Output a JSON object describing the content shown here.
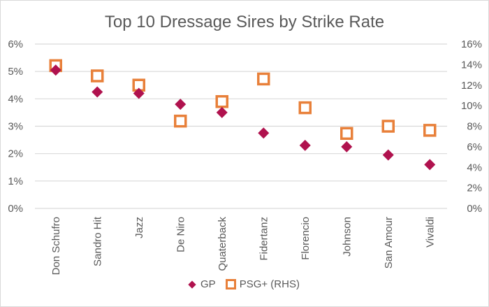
{
  "chart_data": {
    "type": "scatter",
    "title": "Top 10 Dressage Sires by Strike Rate",
    "categories": [
      "Don Schufro",
      "Sandro Hit",
      "Jazz",
      "De Niro",
      "Quaterback",
      "Fidertanz",
      "Florencio",
      "Johnson",
      "San Amour",
      "Vivaldi"
    ],
    "series": [
      {
        "name": "GP",
        "axis": "left",
        "marker": "diamond",
        "color": "#b0124e",
        "values": [
          5.05,
          4.25,
          4.2,
          3.8,
          3.5,
          2.75,
          2.3,
          2.25,
          1.95,
          1.6
        ]
      },
      {
        "name": "PSG+ (RHS)",
        "axis": "right",
        "marker": "hollow-square",
        "color": "#e8803a",
        "values": [
          13.9,
          12.9,
          12.0,
          8.5,
          10.4,
          12.6,
          9.8,
          7.3,
          8.0,
          7.6
        ]
      }
    ],
    "y_left": {
      "ylim": [
        0,
        6
      ],
      "ticks": [
        "0%",
        "1%",
        "2%",
        "3%",
        "4%",
        "5%",
        "6%"
      ]
    },
    "y_right": {
      "ylim": [
        0,
        16
      ],
      "ticks": [
        "0%",
        "2%",
        "4%",
        "6%",
        "8%",
        "10%",
        "12%",
        "14%",
        "16%"
      ]
    },
    "xlabel": "",
    "ylabel": "",
    "grid": true,
    "legend": "bottom"
  }
}
